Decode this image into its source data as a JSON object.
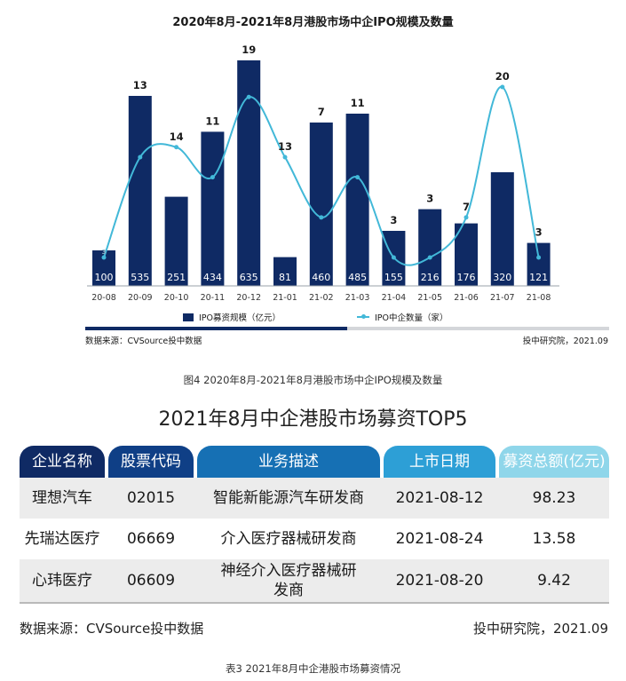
{
  "chart": {
    "title": "2020年8月-2021年8月港股市场中企IPO规模及数量",
    "legend_bar": "IPO募资规模（亿元）",
    "legend_line": "IPO中企数量（家）",
    "source": "数据来源：CVSource投中数据",
    "credit": "投中研究院，2021.09",
    "caption": "图4 2020年8月-2021年8月港股市场中企IPO规模及数量",
    "progress_fraction": 0.5,
    "colors": {
      "bar": "#0f2a64",
      "line": "#42b8d8"
    }
  },
  "chart_data": {
    "type": "bar",
    "title": "2020年8月-2021年8月港股市场中企IPO规模及数量",
    "categories": [
      "20-08",
      "20-09",
      "20-10",
      "20-11",
      "20-12",
      "21-01",
      "21-02",
      "21-03",
      "21-04",
      "21-05",
      "21-06",
      "21-07",
      "21-08"
    ],
    "series": [
      {
        "name": "IPO募资规模（亿元）",
        "type": "bar",
        "values": [
          100,
          535,
          251,
          434,
          635,
          81,
          460,
          485,
          155,
          216,
          176,
          320,
          121
        ]
      },
      {
        "name": "IPO中企数量（家）",
        "type": "line",
        "smooth": true,
        "values": [
          3,
          13,
          14,
          11,
          19,
          13,
          7,
          11,
          3,
          3,
          7,
          20,
          3
        ]
      }
    ],
    "bar_ylim": [
      0,
      635
    ],
    "line_ylim": [
      0,
      20
    ],
    "legend_position": "bottom",
    "grid": false
  },
  "table": {
    "title": "2021年8月中企港股市场募资TOP5",
    "headers": [
      "企业名称",
      "股票代码",
      "业务描述",
      "上市日期",
      "募资总额(亿元)"
    ],
    "rows": [
      [
        "理想汽车",
        "02015",
        "智能新能源汽车研发商",
        "2021-08-12",
        "98.23"
      ],
      [
        "先瑞达医疗",
        "06669",
        "介入医疗器械研发商",
        "2021-08-24",
        "13.58"
      ],
      [
        "心玮医疗",
        "06609",
        "神经介入医疗器械研发商",
        "2021-08-20",
        "9.42"
      ]
    ],
    "source": "数据来源：CVSource投中数据",
    "credit": "投中研究院，2021.09",
    "caption": "表3 2021年8月中企港股市场募资情况",
    "header_colors": [
      "#0f2a64",
      "#0f3f86",
      "#1670b4",
      "#2d9fd6",
      "#8fd6ea"
    ]
  }
}
